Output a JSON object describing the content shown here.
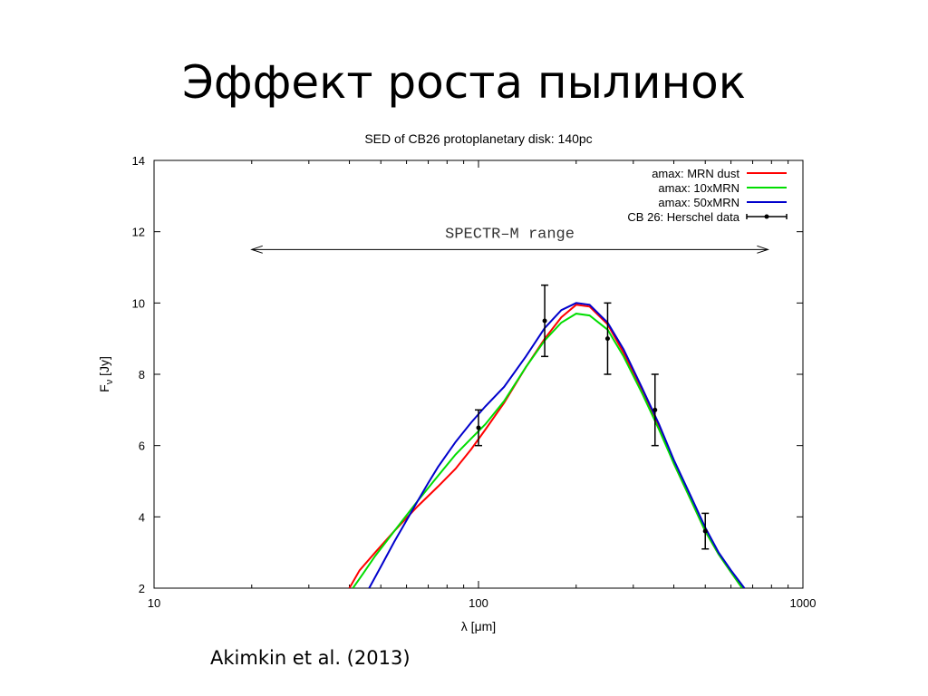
{
  "slide": {
    "title": "Эффект роста пылинок",
    "citation": "Akimkin et al. (2013)"
  },
  "chart_data": {
    "type": "line",
    "title": "SED of CB26 protoplanetary disk: 140pc",
    "xlabel": "λ [μm]",
    "ylabel_main": "F",
    "ylabel_sub": "ν",
    "ylabel_unit": "[Jy]",
    "x_scale": "log",
    "xlim": [
      10,
      1000
    ],
    "ylim": [
      2,
      14
    ],
    "xticks": [
      10,
      100,
      1000
    ],
    "xtick_labels": [
      "10",
      "100",
      "1000"
    ],
    "yticks": [
      2,
      4,
      6,
      8,
      10,
      12,
      14
    ],
    "ytick_labels": [
      "2",
      "4",
      "6",
      "8",
      "10",
      "12",
      "14"
    ],
    "grid": false,
    "legend_position": "top-right",
    "series": [
      {
        "name": "amax: MRN dust",
        "color": "#ff0000",
        "x": [
          40,
          43,
          48,
          55,
          65,
          75,
          85,
          95,
          105,
          120,
          140,
          160,
          180,
          200,
          220,
          250,
          280,
          320,
          360,
          400,
          450,
          500,
          550,
          600,
          650
        ],
        "y": [
          2.0,
          2.5,
          3.0,
          3.6,
          4.3,
          4.85,
          5.35,
          5.9,
          6.45,
          7.2,
          8.2,
          9.0,
          9.6,
          9.95,
          9.9,
          9.4,
          8.6,
          7.5,
          6.5,
          5.5,
          4.5,
          3.6,
          2.95,
          2.45,
          2.0
        ]
      },
      {
        "name": "amax: 10xMRN",
        "color": "#00dd00",
        "x": [
          41,
          44,
          48,
          55,
          65,
          75,
          85,
          95,
          105,
          120,
          140,
          160,
          180,
          200,
          220,
          250,
          280,
          320,
          360,
          400,
          450,
          500,
          550,
          600,
          650
        ],
        "y": [
          2.0,
          2.4,
          2.9,
          3.6,
          4.45,
          5.15,
          5.75,
          6.2,
          6.6,
          7.25,
          8.2,
          8.95,
          9.45,
          9.7,
          9.65,
          9.25,
          8.5,
          7.45,
          6.45,
          5.5,
          4.5,
          3.6,
          2.95,
          2.45,
          2.0
        ]
      },
      {
        "name": "amax: 50xMRN",
        "color": "#0000cc",
        "x": [
          46,
          50,
          55,
          60,
          65,
          70,
          75,
          85,
          95,
          105,
          120,
          140,
          160,
          180,
          200,
          220,
          250,
          280,
          320,
          360,
          400,
          450,
          500,
          550,
          600,
          660
        ],
        "y": [
          2.0,
          2.6,
          3.3,
          3.9,
          4.45,
          4.95,
          5.4,
          6.1,
          6.65,
          7.1,
          7.65,
          8.5,
          9.3,
          9.8,
          10.0,
          9.95,
          9.45,
          8.7,
          7.6,
          6.6,
          5.6,
          4.6,
          3.7,
          3.0,
          2.5,
          2.0
        ]
      }
    ],
    "observations": {
      "name": "CB 26: Herschel data",
      "color": "#000000",
      "points": [
        {
          "x": 100,
          "y": 6.5,
          "ylow": 6.0,
          "yhigh": 7.0
        },
        {
          "x": 160,
          "y": 9.5,
          "ylow": 8.5,
          "yhigh": 10.5
        },
        {
          "x": 250,
          "y": 9.0,
          "ylow": 8.0,
          "yhigh": 10.0
        },
        {
          "x": 350,
          "y": 7.0,
          "ylow": 6.0,
          "yhigh": 8.0
        },
        {
          "x": 500,
          "y": 3.6,
          "ylow": 3.1,
          "yhigh": 4.1
        }
      ]
    },
    "annotation": {
      "text": "SPECTR–M range",
      "x_start": 20,
      "x_end": 780,
      "y": 11.5,
      "style": "double-arrow"
    }
  }
}
